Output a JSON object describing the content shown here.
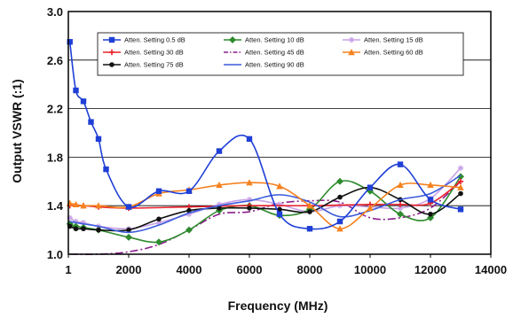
{
  "chart_data": {
    "type": "line",
    "title": "",
    "xlabel": "Frequency (MHz)",
    "ylabel": "Output VSWR (:1)",
    "xlim": [
      0,
      14000
    ],
    "ylim": [
      1.0,
      3.0
    ],
    "xticks": [
      1,
      2000,
      4000,
      6000,
      8000,
      10000,
      12000,
      14000
    ],
    "xtick_labels": [
      "1",
      "2000",
      "4000",
      "6000",
      "8000",
      "10000",
      "12000",
      "14000"
    ],
    "yticks": [
      1.0,
      1.4,
      1.8,
      2.2,
      2.6,
      3.0
    ],
    "ytick_labels": [
      "1.0",
      "1.4",
      "1.8",
      "2.2",
      "2.6",
      "3.0"
    ],
    "grid": true,
    "legend_position": "top, inside plot area",
    "series": [
      {
        "name": "Atten. Setting 0.5 dB",
        "color": "#1f3fd6",
        "marker": "square",
        "dash": "solid",
        "points": [
          [
            50,
            2.75
          ],
          [
            250,
            2.35
          ],
          [
            500,
            2.26
          ],
          [
            750,
            2.09
          ],
          [
            1000,
            1.95
          ],
          [
            1250,
            1.7
          ],
          [
            2000,
            1.39
          ],
          [
            3000,
            1.52
          ],
          [
            4000,
            1.52
          ],
          [
            5000,
            1.85
          ],
          [
            6000,
            1.95
          ],
          [
            7000,
            1.33
          ],
          [
            8000,
            1.21
          ],
          [
            9000,
            1.27
          ],
          [
            10000,
            1.55
          ],
          [
            11000,
            1.74
          ],
          [
            12000,
            1.45
          ],
          [
            13000,
            1.37
          ]
        ]
      },
      {
        "name": "Atten. Setting 10 dB",
        "color": "#2e8b2e",
        "marker": "diamond",
        "dash": "solid",
        "points": [
          [
            50,
            1.25
          ],
          [
            250,
            1.23
          ],
          [
            500,
            1.22
          ],
          [
            1000,
            1.2
          ],
          [
            2000,
            1.14
          ],
          [
            3000,
            1.1
          ],
          [
            4000,
            1.2
          ],
          [
            5000,
            1.36
          ],
          [
            6000,
            1.4
          ],
          [
            7000,
            1.32
          ],
          [
            8000,
            1.37
          ],
          [
            9000,
            1.6
          ],
          [
            10000,
            1.52
          ],
          [
            11000,
            1.33
          ],
          [
            12000,
            1.3
          ],
          [
            13000,
            1.64
          ]
        ]
      },
      {
        "name": "Atten. Setting 15 dB",
        "color": "#c8a2e8",
        "marker": "asterisk",
        "dash": "solid",
        "points": [
          [
            50,
            1.3
          ],
          [
            250,
            1.27
          ],
          [
            500,
            1.26
          ],
          [
            1000,
            1.23
          ],
          [
            2000,
            1.21
          ],
          [
            3000,
            1.26
          ],
          [
            4000,
            1.33
          ],
          [
            5000,
            1.41
          ],
          [
            6000,
            1.45
          ],
          [
            7000,
            1.41
          ],
          [
            8000,
            1.35
          ],
          [
            9000,
            1.4
          ],
          [
            10000,
            1.39
          ],
          [
            11000,
            1.38
          ],
          [
            12000,
            1.46
          ],
          [
            13000,
            1.71
          ]
        ]
      },
      {
        "name": "Atten. Setting 30 dB",
        "color": "#e8202a",
        "marker": "plus",
        "dash": "solid",
        "points": [
          [
            50,
            1.4
          ],
          [
            500,
            1.4
          ],
          [
            1000,
            1.39
          ],
          [
            2000,
            1.38
          ],
          [
            4000,
            1.39
          ],
          [
            6000,
            1.4
          ],
          [
            8000,
            1.4
          ],
          [
            10000,
            1.41
          ],
          [
            11000,
            1.41
          ],
          [
            12000,
            1.42
          ],
          [
            13000,
            1.6
          ]
        ]
      },
      {
        "name": "Atten. Setting 45 dB",
        "color": "#8a1e8a",
        "marker": "none",
        "dash": "dashdot",
        "points": [
          [
            50,
            1.0
          ],
          [
            1000,
            1.0
          ],
          [
            2000,
            1.02
          ],
          [
            3000,
            1.08
          ],
          [
            4000,
            1.2
          ],
          [
            5000,
            1.33
          ],
          [
            6000,
            1.35
          ],
          [
            7000,
            1.42
          ],
          [
            8000,
            1.44
          ],
          [
            9000,
            1.43
          ],
          [
            10000,
            1.3
          ],
          [
            11000,
            1.3
          ],
          [
            12000,
            1.38
          ],
          [
            13000,
            1.6
          ]
        ]
      },
      {
        "name": "Atten. Setting 60 dB",
        "color": "#f58220",
        "marker": "triangle",
        "dash": "solid",
        "points": [
          [
            50,
            1.42
          ],
          [
            250,
            1.41
          ],
          [
            500,
            1.4
          ],
          [
            1000,
            1.4
          ],
          [
            2000,
            1.39
          ],
          [
            3000,
            1.5
          ],
          [
            4000,
            1.53
          ],
          [
            5000,
            1.57
          ],
          [
            6000,
            1.59
          ],
          [
            7000,
            1.56
          ],
          [
            8000,
            1.4
          ],
          [
            9000,
            1.21
          ],
          [
            10000,
            1.38
          ],
          [
            11000,
            1.57
          ],
          [
            12000,
            1.57
          ],
          [
            13000,
            1.55
          ]
        ]
      },
      {
        "name": "Atten. Setting 75 dB",
        "color": "#111111",
        "marker": "circle",
        "dash": "solid",
        "points": [
          [
            50,
            1.23
          ],
          [
            250,
            1.21
          ],
          [
            500,
            1.21
          ],
          [
            1000,
            1.2
          ],
          [
            2000,
            1.2
          ],
          [
            3000,
            1.29
          ],
          [
            4000,
            1.36
          ],
          [
            5000,
            1.38
          ],
          [
            6000,
            1.38
          ],
          [
            7000,
            1.37
          ],
          [
            8000,
            1.35
          ],
          [
            9000,
            1.47
          ],
          [
            10000,
            1.55
          ],
          [
            11000,
            1.45
          ],
          [
            12000,
            1.33
          ],
          [
            13000,
            1.5
          ]
        ]
      },
      {
        "name": "Atten. Setting 90 dB",
        "color": "#3b5bdb",
        "marker": "none",
        "dash": "solid",
        "points": [
          [
            50,
            1.27
          ],
          [
            500,
            1.25
          ],
          [
            1000,
            1.23
          ],
          [
            2000,
            1.18
          ],
          [
            3000,
            1.24
          ],
          [
            4000,
            1.34
          ],
          [
            5000,
            1.4
          ],
          [
            6000,
            1.44
          ],
          [
            7000,
            1.49
          ],
          [
            8000,
            1.43
          ],
          [
            9000,
            1.31
          ],
          [
            10000,
            1.36
          ],
          [
            11000,
            1.45
          ],
          [
            12000,
            1.5
          ],
          [
            13000,
            1.65
          ]
        ]
      }
    ]
  }
}
